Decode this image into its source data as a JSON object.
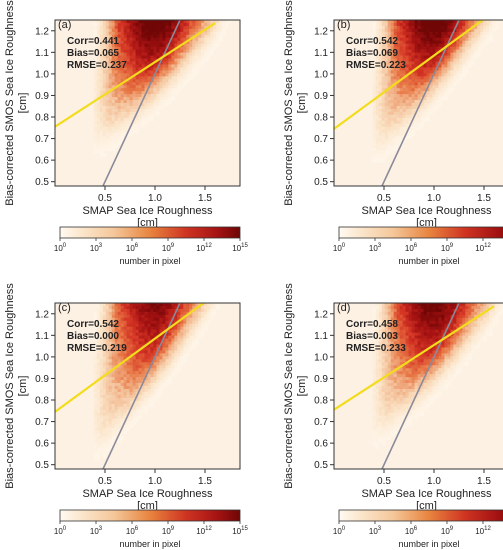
{
  "colors": {
    "background": "#ffffff",
    "frame": "#333333",
    "fit_line": "#f2dc1c",
    "one_to_one_line": "#8a8a9a",
    "density_low": "#fdf1e4",
    "density_mid": "#e8452a",
    "density_high": "#8e0a0a"
  },
  "colorbar": {
    "label": "number in pixel",
    "scale": "log",
    "ticks": [
      {
        "base": "10",
        "exp": "0"
      },
      {
        "base": "10",
        "exp": "3"
      },
      {
        "base": "10",
        "exp": "6"
      },
      {
        "base": "10",
        "exp": "9"
      },
      {
        "base": "10",
        "exp": "12"
      },
      {
        "base": "10",
        "exp": "15"
      }
    ]
  },
  "chart_data": [
    {
      "type": "heatmap",
      "panel_label": "(a)",
      "xlabel": "SMAP Sea Ice Roughness",
      "xunit": "[cm]",
      "ylabel": "Bias-corrected SMOS Sea Ice Roughness",
      "yunit": "[cm]",
      "xlim": [
        0.0,
        1.85
      ],
      "ylim": [
        0.48,
        1.25
      ],
      "x_ticks": [
        0.5,
        1.0,
        1.5
      ],
      "x_tick_labels": [
        "0.5",
        "1.0",
        "1.5"
      ],
      "y_ticks": [
        0.5,
        0.6,
        0.7,
        0.8,
        0.9,
        1.0,
        1.1,
        1.2
      ],
      "y_tick_labels": [
        "0.5",
        "0.6",
        "0.7",
        "0.8",
        "0.9",
        "1.0",
        "1.1",
        "1.2"
      ],
      "stats": [
        "Corr=0.441",
        "Bias=0.065",
        "RMSE=0.237"
      ],
      "fit_line": {
        "slope": 0.3,
        "intercept": 0.755
      },
      "one_to_one_line": {
        "slope": 1.0,
        "intercept": 0.0
      },
      "density": {
        "x_start": 0.45,
        "ridge_slope": 0.45,
        "ridge_intercept": 0.52,
        "spread": 0.13,
        "top_boost": 1.0
      }
    },
    {
      "type": "heatmap",
      "panel_label": "(b)",
      "xlabel": "SMAP Sea Ice Roughness",
      "xunit": "[cm]",
      "ylabel": "Bias-corrected SMOS Sea Ice Roughness",
      "yunit": "[cm]",
      "xlim": [
        0.0,
        1.85
      ],
      "ylim": [
        0.48,
        1.25
      ],
      "x_ticks": [
        0.5,
        1.0,
        1.5
      ],
      "x_tick_labels": [
        "0.5",
        "1.0",
        "1.5"
      ],
      "y_ticks": [
        0.5,
        0.6,
        0.7,
        0.8,
        0.9,
        1.0,
        1.1,
        1.2
      ],
      "y_tick_labels": [
        "0.5",
        "0.6",
        "0.7",
        "0.8",
        "0.9",
        "1.0",
        "1.1",
        "1.2"
      ],
      "stats": [
        "Corr=0.542",
        "Bias=0.069",
        "RMSE=0.223"
      ],
      "fit_line": {
        "slope": 0.34,
        "intercept": 0.745
      },
      "one_to_one_line": {
        "slope": 1.0,
        "intercept": 0.0
      },
      "density": {
        "x_start": 0.45,
        "ridge_slope": 0.55,
        "ridge_intercept": 0.44,
        "spread": 0.12,
        "top_boost": 1.0
      }
    },
    {
      "type": "heatmap",
      "panel_label": "(c)",
      "xlabel": "SMAP Sea Ice Roughness",
      "xunit": "[cm]",
      "ylabel": "Bias-corrected SMOS Sea Ice Roughness",
      "yunit": "[cm]",
      "xlim": [
        0.0,
        1.85
      ],
      "ylim": [
        0.48,
        1.25
      ],
      "x_ticks": [
        0.5,
        1.0,
        1.5
      ],
      "x_tick_labels": [
        "0.5",
        "1.0",
        "1.5"
      ],
      "y_ticks": [
        0.5,
        0.6,
        0.7,
        0.8,
        0.9,
        1.0,
        1.1,
        1.2
      ],
      "y_tick_labels": [
        "0.5",
        "0.6",
        "0.7",
        "0.8",
        "0.9",
        "1.0",
        "1.1",
        "1.2"
      ],
      "stats": [
        "Corr=0.542",
        "Bias=0.000",
        "RMSE=0.219"
      ],
      "fit_line": {
        "slope": 0.34,
        "intercept": 0.745
      },
      "one_to_one_line": {
        "slope": 1.0,
        "intercept": 0.0
      },
      "density": {
        "x_start": 0.45,
        "ridge_slope": 0.6,
        "ridge_intercept": 0.36,
        "spread": 0.12,
        "top_boost": 0.8
      }
    },
    {
      "type": "heatmap",
      "panel_label": "(d)",
      "xlabel": "SMAP Sea Ice Roughness",
      "xunit": "[cm]",
      "ylabel": "Bias-corrected SMOS Sea Ice Roughness",
      "yunit": "[cm]",
      "xlim": [
        0.0,
        1.85
      ],
      "ylim": [
        0.48,
        1.25
      ],
      "x_ticks": [
        0.5,
        1.0,
        1.5
      ],
      "x_tick_labels": [
        "0.5",
        "1.0",
        "1.5"
      ],
      "y_ticks": [
        0.5,
        0.6,
        0.7,
        0.8,
        0.9,
        1.0,
        1.1,
        1.2
      ],
      "y_tick_labels": [
        "0.5",
        "0.6",
        "0.7",
        "0.8",
        "0.9",
        "1.0",
        "1.1",
        "1.2"
      ],
      "stats": [
        "Corr=0.458",
        "Bias=0.003",
        "RMSE=0.233"
      ],
      "fit_line": {
        "slope": 0.3,
        "intercept": 0.755
      },
      "one_to_one_line": {
        "slope": 1.0,
        "intercept": 0.0
      },
      "density": {
        "x_start": 0.45,
        "ridge_slope": 0.5,
        "ridge_intercept": 0.46,
        "spread": 0.13,
        "top_boost": 0.9
      }
    }
  ]
}
